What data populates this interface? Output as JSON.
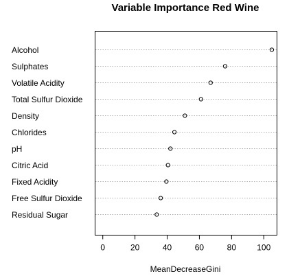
{
  "chart_data": {
    "type": "scatter",
    "title": "Variable Importance Red Wine",
    "xlabel": "MeanDecreaseGini",
    "ylabel": "",
    "xlim": [
      -5,
      108
    ],
    "x_ticks": [
      0,
      20,
      40,
      60,
      80,
      100
    ],
    "grid": "horizontal dotted",
    "categories": [
      "Alcohol",
      "Sulphates",
      "Volatile Acidity",
      "Total Sulfur Dioxide",
      "Density",
      "Chlorides",
      "pH",
      "Citric Acid",
      "Fixed Acidity",
      "Free Sulfur Dioxide",
      "Residual Sugar"
    ],
    "values": [
      105,
      76,
      67,
      61,
      51,
      44.5,
      42,
      40.5,
      39.5,
      36,
      33.5
    ]
  }
}
